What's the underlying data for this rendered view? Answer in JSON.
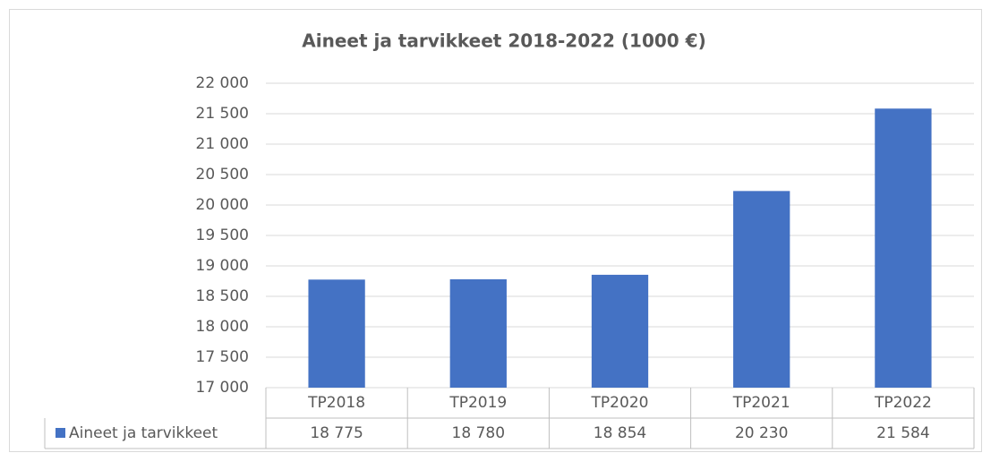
{
  "chart_data": {
    "type": "bar",
    "title": "Aineet ja tarvikkeet 2018-2022 (1000 €)",
    "categories": [
      "TP2018",
      "TP2019",
      "TP2020",
      "TP2021",
      "TP2022"
    ],
    "series": [
      {
        "name": "Aineet ja tarvikkeet",
        "color": "#4472c4",
        "values": [
          18775,
          18780,
          18854,
          20230,
          21584
        ],
        "value_labels": [
          "18 775",
          "18 780",
          "18 854",
          "20 230",
          "21 584"
        ]
      }
    ],
    "ylim": [
      17000,
      22000
    ],
    "yticks": [
      {
        "value": 17000,
        "label": "17 000"
      },
      {
        "value": 17500,
        "label": "17 500"
      },
      {
        "value": 18000,
        "label": "18 000"
      },
      {
        "value": 18500,
        "label": "18 500"
      },
      {
        "value": 19000,
        "label": "19 000"
      },
      {
        "value": 19500,
        "label": "19 500"
      },
      {
        "value": 20000,
        "label": "20 000"
      },
      {
        "value": 20500,
        "label": "20 500"
      },
      {
        "value": 21000,
        "label": "21 000"
      },
      {
        "value": 21500,
        "label": "21 500"
      },
      {
        "value": 22000,
        "label": "22 000"
      }
    ],
    "grid": true,
    "legend": "data-table"
  }
}
